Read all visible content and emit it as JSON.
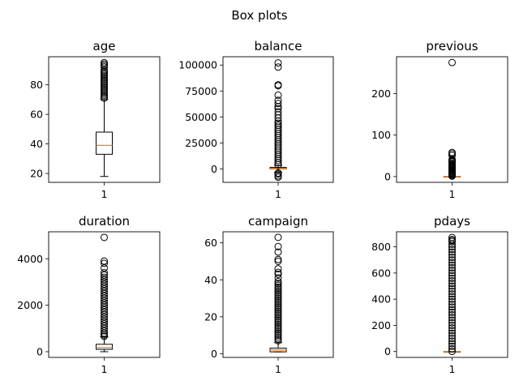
{
  "figure": {
    "title": "Box plots"
  },
  "chart_data": [
    {
      "type": "box",
      "title": "age",
      "categories": [
        "1"
      ],
      "ylim": [
        14,
        99
      ],
      "yticks": [
        20,
        40,
        60,
        80
      ],
      "box": {
        "whisker_low": 18,
        "q1": 33,
        "median": 39,
        "q3": 48,
        "whisker_high": 70
      },
      "outliers": [
        71,
        72,
        73,
        74,
        75,
        76,
        77,
        78,
        79,
        80,
        81,
        82,
        83,
        84,
        85,
        86,
        87,
        88,
        89,
        90,
        92,
        93,
        94,
        95
      ]
    },
    {
      "type": "box",
      "title": "balance",
      "categories": [
        "1"
      ],
      "ylim": [
        -13000,
        108000
      ],
      "yticks": [
        0,
        25000,
        50000,
        75000,
        100000
      ],
      "box": {
        "whisker_low": -3300,
        "q1": 72,
        "median": 448,
        "q3": 1428,
        "whisker_high": 3400
      },
      "outliers": [
        -8000,
        -6800,
        -5000,
        -4000,
        4000,
        6000,
        8000,
        10000,
        12000,
        14000,
        16000,
        18000,
        20000,
        22000,
        24000,
        26000,
        28000,
        30000,
        32000,
        34000,
        36000,
        38000,
        40000,
        42000,
        44000,
        46000,
        49000,
        52000,
        55000,
        58000,
        60000,
        63000,
        66000,
        71000,
        80000,
        81000,
        98000,
        102000
      ]
    },
    {
      "type": "box",
      "title": "previous",
      "categories": [
        "1"
      ],
      "ylim": [
        -14,
        289
      ],
      "yticks": [
        0,
        100,
        200
      ],
      "box": {
        "whisker_low": 0,
        "q1": 0,
        "median": 0,
        "q3": 0,
        "whisker_high": 0
      },
      "outliers": [
        1,
        3,
        5,
        7,
        9,
        11,
        13,
        15,
        17,
        19,
        21,
        23,
        25,
        27,
        29,
        30,
        32,
        35,
        37,
        38,
        40,
        41,
        51,
        55,
        58,
        275
      ]
    },
    {
      "type": "box",
      "title": "duration",
      "categories": [
        "1"
      ],
      "ylim": [
        -245,
        5160
      ],
      "yticks": [
        0,
        2000,
        4000
      ],
      "box": {
        "whisker_low": 0,
        "q1": 103,
        "median": 180,
        "q3": 319,
        "whisker_high": 643
      },
      "outliers": [
        660,
        720,
        800,
        900,
        1000,
        1100,
        1200,
        1300,
        1400,
        1500,
        1600,
        1700,
        1800,
        1900,
        2000,
        2100,
        2200,
        2300,
        2400,
        2500,
        2600,
        2700,
        2800,
        2900,
        3000,
        3100,
        3200,
        3300,
        3400,
        3600,
        3800,
        3900,
        4918
      ]
    },
    {
      "type": "box",
      "title": "campaign",
      "categories": [
        "1"
      ],
      "ylim": [
        -2,
        66
      ],
      "yticks": [
        0,
        20,
        40,
        60
      ],
      "box": {
        "whisker_low": 1,
        "q1": 1,
        "median": 2,
        "q3": 3,
        "whisker_high": 6
      },
      "outliers": [
        7,
        8,
        9,
        10,
        11,
        12,
        13,
        14,
        15,
        16,
        17,
        18,
        19,
        20,
        21,
        22,
        23,
        24,
        25,
        26,
        27,
        28,
        29,
        30,
        31,
        32,
        33,
        34,
        35,
        36,
        37,
        38,
        39,
        41,
        43,
        44,
        46,
        50,
        51,
        55,
        58,
        63
      ]
    },
    {
      "type": "box",
      "title": "pdays",
      "categories": [
        "1"
      ],
      "ylim": [
        -45,
        915
      ],
      "yticks": [
        0,
        200,
        400,
        600,
        800
      ],
      "box": {
        "whisker_low": -1,
        "q1": -1,
        "median": -1,
        "q3": -1,
        "whisker_high": -1
      },
      "outliers": [
        1,
        20,
        40,
        60,
        80,
        100,
        120,
        140,
        160,
        180,
        200,
        220,
        240,
        260,
        280,
        300,
        320,
        340,
        360,
        380,
        400,
        420,
        440,
        460,
        480,
        500,
        520,
        540,
        560,
        580,
        600,
        620,
        640,
        660,
        680,
        700,
        720,
        740,
        760,
        780,
        800,
        820,
        840,
        850,
        855,
        871
      ]
    }
  ]
}
